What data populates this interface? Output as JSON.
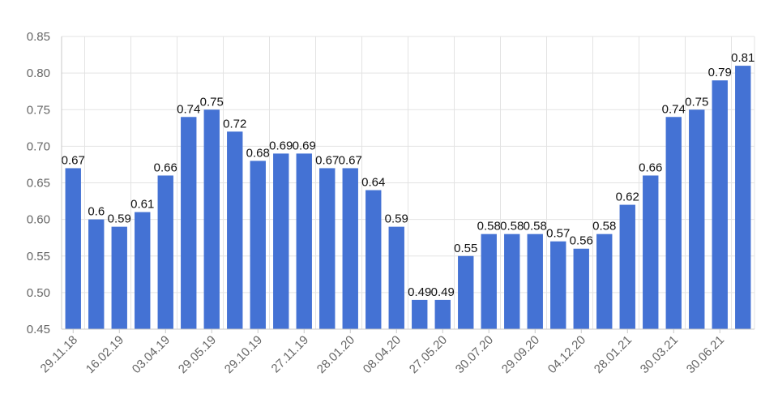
{
  "chart_data": {
    "type": "bar",
    "title": "",
    "xlabel": "",
    "ylabel": "",
    "ylim": [
      0.45,
      0.85
    ],
    "ytick_labels": [
      "0.45",
      "0.50",
      "0.55",
      "0.60",
      "0.65",
      "0.70",
      "0.75",
      "0.80",
      "0.85"
    ],
    "ytick_values": [
      0.45,
      0.5,
      0.55,
      0.6,
      0.65,
      0.7,
      0.75,
      0.8,
      0.85
    ],
    "xtick_labels": [
      "29.11.18",
      "16.02.19",
      "03.04.19",
      "29.05.19",
      "29.10.19",
      "27.11.19",
      "28.01.20",
      "08.04.20",
      "27.05.20",
      "30.07.20",
      "29.09.20",
      "04.12.20",
      "28.01.21",
      "30.03.21",
      "30.06.21"
    ],
    "values": [
      0.67,
      0.6,
      0.59,
      0.61,
      0.66,
      0.74,
      0.75,
      0.72,
      0.68,
      0.69,
      0.69,
      0.67,
      0.67,
      0.64,
      0.59,
      0.49,
      0.49,
      0.55,
      0.58,
      0.58,
      0.58,
      0.57,
      0.56,
      0.58,
      0.62,
      0.66,
      0.74,
      0.75,
      0.79,
      0.81
    ],
    "value_labels": [
      "0.67",
      "0.6",
      "0.59",
      "0.61",
      "0.66",
      "0.74",
      "0.75",
      "0.72",
      "0.68",
      "0.69",
      "0.69",
      "0.67",
      "0.67",
      "0.64",
      "0.59",
      "0.49",
      "0.49",
      "0.55",
      "0.58",
      "0.58",
      "0.58",
      "0.57",
      "0.56",
      "0.58",
      "0.62",
      "0.66",
      "0.74",
      "0.75",
      "0.79",
      "0.81"
    ],
    "bar_color": "#4472d4",
    "grid": true,
    "legend": "none"
  }
}
